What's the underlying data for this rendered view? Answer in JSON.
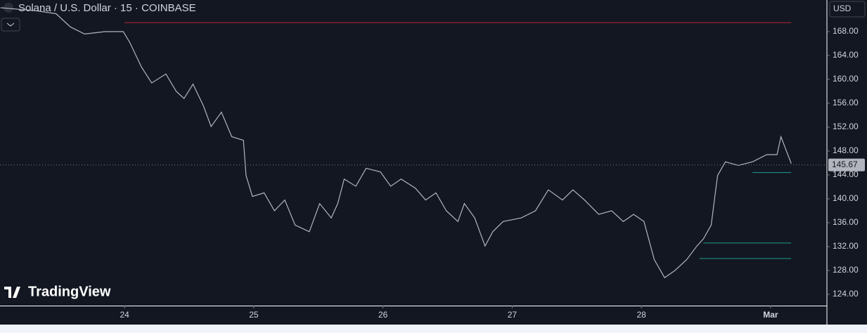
{
  "chart_data": {
    "type": "line",
    "title": "Solana / U.S. Dollar · 15 · COINBASE",
    "currency": "USD",
    "brand": "TradingView",
    "x": [
      23.04,
      23.31,
      23.47,
      23.58,
      23.69,
      23.85,
      23.99,
      24.04,
      24.13,
      24.21,
      24.32,
      24.4,
      24.46,
      24.53,
      24.61,
      24.67,
      24.75,
      24.83,
      24.92,
      24.94,
      24.99,
      25.08,
      25.16,
      25.24,
      25.32,
      25.43,
      25.51,
      25.6,
      25.65,
      25.7,
      25.79,
      25.87,
      25.98,
      26.06,
      26.14,
      26.25,
      26.33,
      26.41,
      26.49,
      26.58,
      26.63,
      26.71,
      26.79,
      26.85,
      26.93,
      27.07,
      27.18,
      27.28,
      27.39,
      27.47,
      27.56,
      27.67,
      27.77,
      27.86,
      27.94,
      28.02,
      28.1,
      28.18,
      28.26,
      28.35,
      28.43,
      28.48,
      28.54,
      28.59,
      28.65,
      28.75,
      28.86,
      28.97,
      29.05,
      29.08,
      29.16
    ],
    "series": [
      {
        "name": "SOLUSD",
        "color": "#b2b5be",
        "values": [
          172,
          171.5,
          171,
          168.8,
          167.6,
          168,
          168,
          166.2,
          162.1,
          159.4,
          160.9,
          158,
          156.8,
          159.2,
          155.6,
          152.1,
          154.5,
          150.4,
          149.8,
          143.9,
          140.4,
          141,
          138,
          139.8,
          135.6,
          134.5,
          139.2,
          136.8,
          139.2,
          143.3,
          142.1,
          145.1,
          144.5,
          142.1,
          143.3,
          141.8,
          139.8,
          141,
          138,
          136.2,
          139.2,
          136.8,
          132.1,
          134.5,
          136.2,
          136.8,
          138,
          141.5,
          139.8,
          141.5,
          139.8,
          137.4,
          138,
          136.2,
          137.4,
          136.2,
          129.8,
          126.8,
          128,
          129.8,
          132.1,
          133.3,
          135.6,
          143.9,
          146.2,
          145.6,
          146.2,
          147.4,
          147.4,
          150.4,
          145.9
        ]
      }
    ],
    "levels": [
      {
        "value": 169.5,
        "start": 24.0,
        "color": "#b2283a"
      },
      {
        "value": 132.6,
        "start": 28.48,
        "color": "#1a9e8c"
      },
      {
        "value": 130.0,
        "start": 28.45,
        "color": "#1a9e8c"
      },
      {
        "value": 144.4,
        "start": 28.86,
        "color": "#1a9e8c"
      }
    ],
    "last_price": 145.67,
    "xlim": [
      23.036,
      29.436
    ],
    "ylim": [
      122.12,
      173.29
    ],
    "xticks": [
      24,
      25,
      26,
      27,
      28,
      {
        "value": 29,
        "label": "Mar"
      }
    ],
    "yticks": [
      {
        "value": 124,
        "label": "124.00"
      },
      {
        "value": 128,
        "label": "128.00"
      },
      {
        "value": 132,
        "label": "132.00"
      },
      {
        "value": 136,
        "label": "136.00"
      },
      {
        "value": 140,
        "label": "140.00"
      },
      {
        "value": 144,
        "label": "144.00"
      },
      {
        "value": 148,
        "label": "148.00"
      },
      {
        "value": 152,
        "label": "152.00"
      },
      {
        "value": 156,
        "label": "156.00"
      },
      {
        "value": 160,
        "label": "160.00"
      },
      {
        "value": 164,
        "label": "164.00"
      },
      {
        "value": 168,
        "label": "168.00"
      }
    ]
  }
}
